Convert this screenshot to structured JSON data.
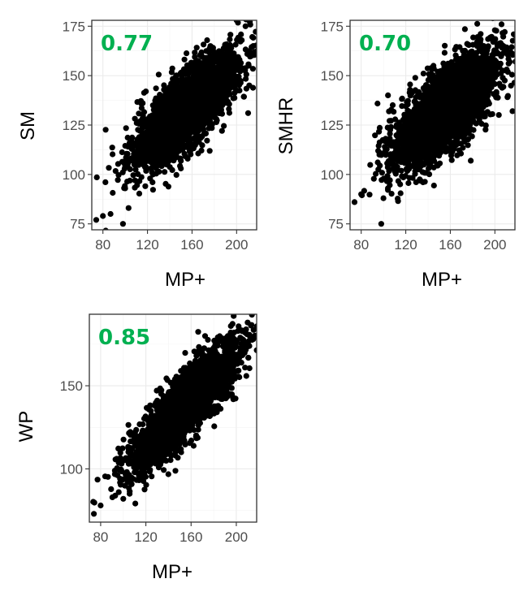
{
  "chart_data": [
    {
      "type": "scatter",
      "xlabel": "MP+",
      "ylabel": "SM",
      "annotation": "0.77",
      "xlim": [
        70,
        218
      ],
      "ylim": [
        72,
        178
      ],
      "xticks": [
        80,
        120,
        160,
        200
      ],
      "yticks": [
        75,
        100,
        125,
        150,
        175
      ],
      "r": 0.77,
      "x_center": 155,
      "x_sd": 23,
      "y_center": 133,
      "y_sd": 14,
      "n_points": 3000,
      "points": [
        [
          74,
          77
        ],
        [
          80,
          79
        ],
        [
          98,
          75
        ],
        [
          100,
          93
        ],
        [
          103,
          83
        ],
        [
          208,
          175
        ],
        [
          215,
          165
        ],
        [
          200,
          178
        ],
        [
          150,
          103
        ],
        [
          125,
          100
        ]
      ],
      "grid": true
    },
    {
      "type": "scatter",
      "xlabel": "MP+",
      "ylabel": "SMHR",
      "annotation": "0.70",
      "xlim": [
        70,
        218
      ],
      "ylim": [
        72,
        178
      ],
      "xticks": [
        80,
        120,
        160,
        200
      ],
      "yticks": [
        75,
        100,
        125,
        150,
        175
      ],
      "r": 0.7,
      "x_center": 155,
      "x_sd": 23,
      "y_center": 133,
      "y_sd": 14,
      "n_points": 3000,
      "points": [
        [
          74,
          86
        ],
        [
          80,
          90
        ],
        [
          98,
          75
        ],
        [
          100,
          88
        ],
        [
          104,
          93
        ],
        [
          206,
          176
        ],
        [
          214,
          162
        ],
        [
          200,
          173
        ],
        [
          115,
          95
        ],
        [
          190,
          165
        ]
      ],
      "grid": true
    },
    {
      "type": "scatter",
      "xlabel": "MP+",
      "ylabel": "WP",
      "annotation": "0.85",
      "xlim": [
        70,
        218
      ],
      "ylim": [
        68,
        193
      ],
      "xticks": [
        80,
        120,
        160,
        200
      ],
      "yticks": [
        100,
        150
      ],
      "r": 0.85,
      "x_center": 155,
      "x_sd": 23,
      "y_center": 138,
      "y_sd": 18,
      "n_points": 3000,
      "points": [
        [
          74,
          73
        ],
        [
          80,
          78
        ],
        [
          96,
          86
        ],
        [
          100,
          82
        ],
        [
          104,
          92
        ],
        [
          210,
          188
        ],
        [
          215,
          178
        ],
        [
          205,
          183
        ],
        [
          110,
          98
        ],
        [
          195,
          182
        ]
      ],
      "grid": true
    }
  ],
  "colors": {
    "annotation": "#00b050",
    "point": "#000000",
    "grid": "#ebebeb",
    "frame": "#333333",
    "tick_label": "#4d4d4d"
  }
}
